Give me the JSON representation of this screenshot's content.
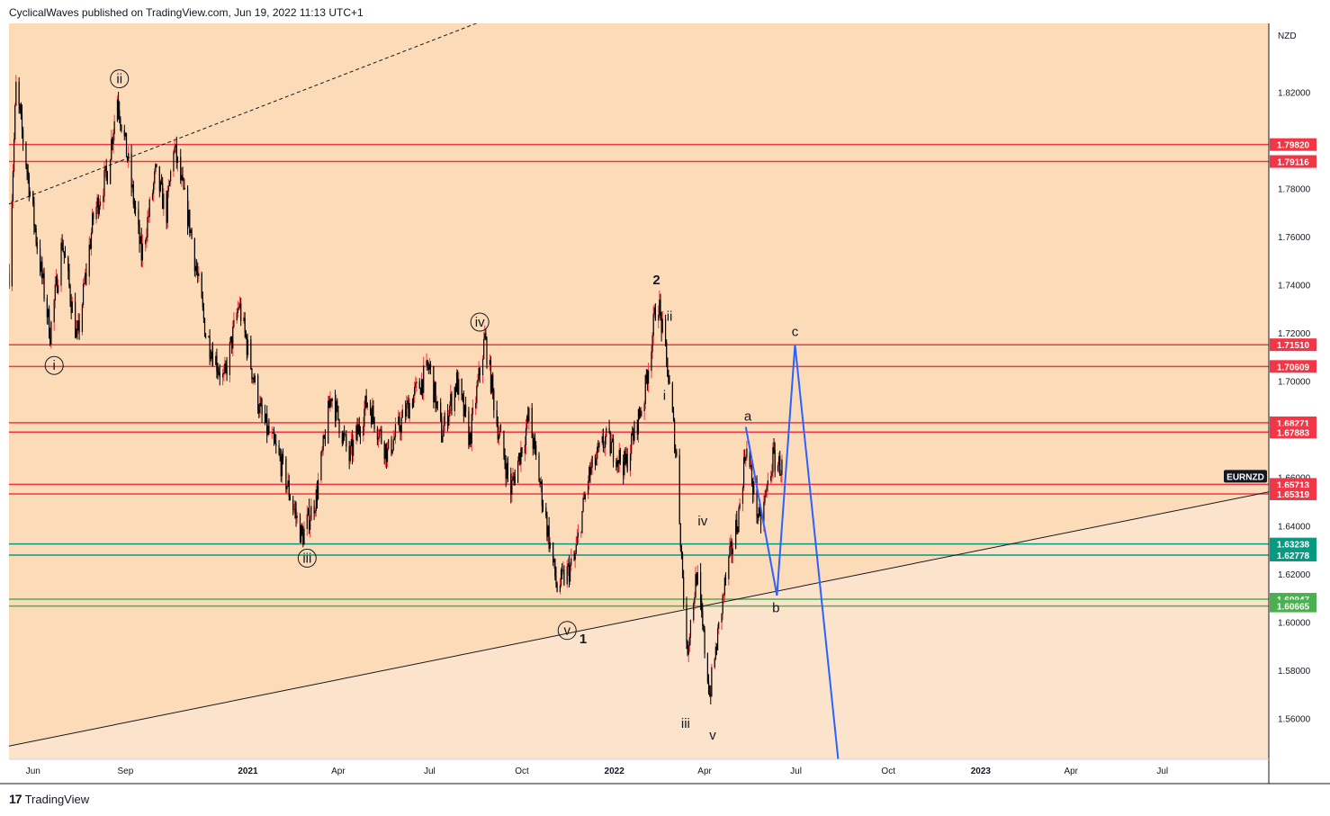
{
  "header": {
    "text": "CyclicalWaves published on TradingView.com, Jun 19, 2022 11:13 UTC+1"
  },
  "footer": {
    "logo": "17",
    "brand": "TradingView"
  },
  "chart_data": {
    "type": "candlestick",
    "symbol": "EURNZD",
    "currency": "NZD",
    "ylim": [
      1.543,
      1.8485
    ],
    "y_ticks": [
      1.82,
      1.78,
      1.76,
      1.74,
      1.72,
      1.7,
      1.66,
      1.64,
      1.62,
      1.6,
      1.58,
      1.56
    ],
    "y_tick_labels": [
      "1.82000",
      "1.78000",
      "1.76000",
      "1.74000",
      "1.72000",
      "1.70000",
      "1.66000",
      "1.64000",
      "1.62000",
      "1.60000",
      "1.58000",
      "1.56000"
    ],
    "x_ticks": [
      {
        "label": "Jun",
        "date": "2020-06-01",
        "bold": false
      },
      {
        "label": "Sep",
        "date": "2020-09-01",
        "bold": false
      },
      {
        "label": "2021",
        "date": "2021-01-01",
        "bold": true
      },
      {
        "label": "Apr",
        "date": "2021-04-01",
        "bold": false
      },
      {
        "label": "Jul",
        "date": "2021-07-01",
        "bold": false
      },
      {
        "label": "Oct",
        "date": "2021-10-01",
        "bold": false
      },
      {
        "label": "2022",
        "date": "2022-01-01",
        "bold": true
      },
      {
        "label": "Apr",
        "date": "2022-04-01",
        "bold": false
      },
      {
        "label": "Jul",
        "date": "2022-07-01",
        "bold": false
      },
      {
        "label": "Oct",
        "date": "2022-10-01",
        "bold": false
      },
      {
        "label": "2023",
        "date": "2023-01-01",
        "bold": true
      },
      {
        "label": "Apr",
        "date": "2023-04-01",
        "bold": false
      },
      {
        "label": "Jul",
        "date": "2023-07-01",
        "bold": false
      }
    ],
    "price_path": [
      [
        "2020-05-08",
        1.745
      ],
      [
        "2020-05-15",
        1.822
      ],
      [
        "2020-06-05",
        1.757
      ],
      [
        "2020-06-18",
        1.72
      ],
      [
        "2020-06-30",
        1.758
      ],
      [
        "2020-07-15",
        1.717
      ],
      [
        "2020-07-31",
        1.768
      ],
      [
        "2020-08-14",
        1.787
      ],
      [
        "2020-08-24",
        1.818
      ],
      [
        "2020-09-04",
        1.79
      ],
      [
        "2020-09-17",
        1.752
      ],
      [
        "2020-10-01",
        1.786
      ],
      [
        "2020-10-12",
        1.77
      ],
      [
        "2020-10-19",
        1.798
      ],
      [
        "2020-11-04",
        1.765
      ],
      [
        "2020-11-20",
        1.72
      ],
      [
        "2020-12-08",
        1.7
      ],
      [
        "2020-12-23",
        1.732
      ],
      [
        "2021-01-14",
        1.686
      ],
      [
        "2021-02-03",
        1.666
      ],
      [
        "2021-02-24",
        1.635
      ],
      [
        "2021-03-10",
        1.652
      ],
      [
        "2021-03-25",
        1.695
      ],
      [
        "2021-04-12",
        1.668
      ],
      [
        "2021-04-30",
        1.692
      ],
      [
        "2021-05-20",
        1.67
      ],
      [
        "2021-06-10",
        1.69
      ],
      [
        "2021-07-01",
        1.706
      ],
      [
        "2021-07-13",
        1.678
      ],
      [
        "2021-07-28",
        1.7
      ],
      [
        "2021-08-10",
        1.676
      ],
      [
        "2021-08-25",
        1.718
      ],
      [
        "2021-09-06",
        1.683
      ],
      [
        "2021-09-20",
        1.655
      ],
      [
        "2021-10-08",
        1.685
      ],
      [
        "2021-10-22",
        1.65
      ],
      [
        "2021-11-05",
        1.614
      ],
      [
        "2021-11-22",
        1.625
      ],
      [
        "2021-12-06",
        1.66
      ],
      [
        "2021-12-23",
        1.676
      ],
      [
        "2022-01-12",
        1.665
      ],
      [
        "2022-01-31",
        1.694
      ],
      [
        "2022-02-13",
        1.736
      ],
      [
        "2022-02-23",
        1.705
      ],
      [
        "2022-03-04",
        1.668
      ],
      [
        "2022-03-14",
        1.587
      ],
      [
        "2022-03-24",
        1.62
      ],
      [
        "2022-04-06",
        1.57
      ],
      [
        "2022-04-22",
        1.618
      ],
      [
        "2022-05-05",
        1.645
      ],
      [
        "2022-05-12",
        1.673
      ],
      [
        "2022-05-26",
        1.64
      ],
      [
        "2022-06-08",
        1.668
      ],
      [
        "2022-06-17",
        1.664
      ]
    ],
    "horizontal_levels": [
      {
        "price": 1.7982,
        "label": "1.79820",
        "color": "#f23645"
      },
      {
        "price": 1.79116,
        "label": "1.79116",
        "color": "#f23645"
      },
      {
        "price": 1.7151,
        "label": "1.71510",
        "color": "#f23645"
      },
      {
        "price": 1.70609,
        "label": "1.70609",
        "color": "#f23645"
      },
      {
        "price": 1.68271,
        "label": "1.68271",
        "color": "#f23645"
      },
      {
        "price": 1.67883,
        "label": "1.67883",
        "color": "#f23645"
      },
      {
        "price": 1.65713,
        "label": "1.65713",
        "color": "#f23645"
      },
      {
        "price": 1.65319,
        "label": "1.65319",
        "color": "#f23645"
      },
      {
        "price": 1.63238,
        "label": "1.63238",
        "color": "#089981"
      },
      {
        "price": 1.62778,
        "label": "1.62778",
        "color": "#089981"
      },
      {
        "price": 1.60947,
        "label": "1.60947",
        "color": "#4caf50"
      },
      {
        "price": 1.60665,
        "label": "1.60665",
        "color": "#4caf50"
      }
    ],
    "symbol_tag": {
      "label": "EURNZD",
      "price": 1.6605
    },
    "channel_line": {
      "from": [
        "2020-05-08",
        1.5485
      ],
      "to": [
        "2023-10-15",
        1.654
      ]
    },
    "dashed_line": {
      "from": [
        "2020-05-08",
        1.7735
      ],
      "to": [
        "2022-03-31",
        1.885
      ]
    },
    "projection": [
      [
        "2022-05-12",
        1.681
      ],
      [
        "2022-06-12",
        1.611
      ],
      [
        "2022-06-30",
        1.7151
      ],
      [
        "2022-08-12",
        1.543
      ]
    ],
    "wave_labels": [
      {
        "text": "ii",
        "date": "2020-08-26",
        "price": 1.8255,
        "circled": true
      },
      {
        "text": "i",
        "date": "2020-06-22",
        "price": 1.7065,
        "circled": true
      },
      {
        "text": "iii",
        "date": "2021-03-01",
        "price": 1.6265,
        "circled": true
      },
      {
        "text": "iv",
        "date": "2021-08-20",
        "price": 1.7245,
        "circled": true
      },
      {
        "text": "v",
        "date": "2021-11-15",
        "price": 1.5965,
        "circled": true
      },
      {
        "text": "1",
        "date": "2021-12-01",
        "price": 1.593,
        "circled": false
      },
      {
        "text": "2",
        "date": "2022-02-12",
        "price": 1.742,
        "circled": false
      },
      {
        "text": "ii",
        "date": "2022-02-25",
        "price": 1.727,
        "circled": false
      },
      {
        "text": "i",
        "date": "2022-02-20",
        "price": 1.694,
        "circled": false
      },
      {
        "text": "iv",
        "date": "2022-03-30",
        "price": 1.642,
        "circled": false
      },
      {
        "text": "iii",
        "date": "2022-03-13",
        "price": 1.558,
        "circled": false
      },
      {
        "text": "v",
        "date": "2022-04-09",
        "price": 1.553,
        "circled": false
      },
      {
        "text": "a",
        "date": "2022-05-14",
        "price": 1.6855,
        "circled": false
      },
      {
        "text": "b",
        "date": "2022-06-11",
        "price": 1.606,
        "circled": false
      },
      {
        "text": "c",
        "date": "2022-06-30",
        "price": 1.7205,
        "circled": false
      }
    ],
    "colors": {
      "zone_upper": "#fcdcb8",
      "zone_lower": "#fce4cc",
      "candle": "#000000",
      "wick_up": "#f23645",
      "projection": "#2962ff"
    }
  }
}
